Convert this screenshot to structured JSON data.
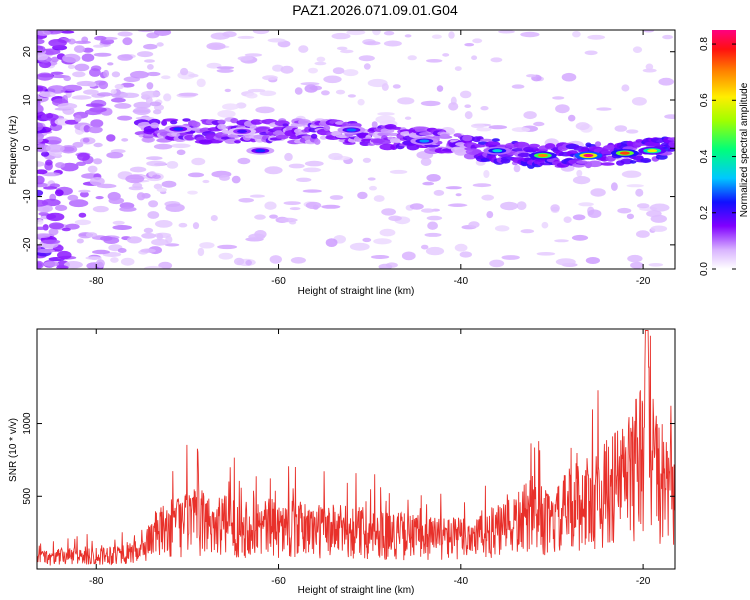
{
  "title": "PAZ1.2026.071.09.01.G04",
  "chart_data": [
    {
      "type": "heatmap",
      "title": "PAZ1.2026.071.09.01.G04",
      "xlabel": "Height of straight line (km)",
      "ylabel": "Frequency (Hz)",
      "xlim": [
        -86.5,
        -16.5
      ],
      "ylim": [
        -25,
        24.5
      ],
      "xticks": [
        -80,
        -60,
        -40,
        -20
      ],
      "yticks": [
        -20,
        -10,
        0,
        10,
        20
      ],
      "ridge": [
        {
          "x": -74,
          "y": 4.0
        },
        {
          "x": -68,
          "y": 3.5
        },
        {
          "x": -60,
          "y": 3.5
        },
        {
          "x": -54,
          "y": 3.5
        },
        {
          "x": -48,
          "y": 2.5
        },
        {
          "x": -42,
          "y": 1.5
        },
        {
          "x": -38,
          "y": 0.0
        },
        {
          "x": -32,
          "y": -1.5
        },
        {
          "x": -26,
          "y": -1.5
        },
        {
          "x": -20,
          "y": -0.5
        },
        {
          "x": -16.5,
          "y": 0.0
        }
      ],
      "hotspots": [
        {
          "x": -71,
          "y": 4.0,
          "amp": 0.25
        },
        {
          "x": -64,
          "y": 3.5,
          "amp": 0.2
        },
        {
          "x": -62,
          "y": -0.5,
          "amp": 0.25
        },
        {
          "x": -52,
          "y": 3.8,
          "amp": 0.28
        },
        {
          "x": -44,
          "y": 1.5,
          "amp": 0.3
        },
        {
          "x": -36,
          "y": -0.5,
          "amp": 0.35
        },
        {
          "x": -31,
          "y": -1.5,
          "amp": 0.7
        },
        {
          "x": -26,
          "y": -1.5,
          "amp": 0.9
        },
        {
          "x": -22,
          "y": -1.0,
          "amp": 0.75
        },
        {
          "x": -19,
          "y": -0.5,
          "amp": 0.6
        }
      ],
      "colorbar": {
        "label": "Normalized spectral amplitude",
        "range": [
          0.0,
          0.85
        ],
        "ticks": [
          0.0,
          0.2,
          0.4,
          0.6,
          0.8
        ],
        "colormap": "rainbow"
      }
    },
    {
      "type": "line",
      "xlabel": "Height of straight line (km)",
      "ylabel": "SNR (10 * v/v)",
      "xlim": [
        -86.5,
        -16.5
      ],
      "ylim": [
        0,
        1650
      ],
      "xticks": [
        -80,
        -60,
        -40,
        -20
      ],
      "yticks": [
        500,
        1000
      ],
      "color": "#e8302a",
      "envelope": [
        {
          "x": -86.5,
          "y": 130
        },
        {
          "x": -80,
          "y": 160
        },
        {
          "x": -75,
          "y": 200
        },
        {
          "x": -74,
          "y": 380
        },
        {
          "x": -70,
          "y": 560
        },
        {
          "x": -65,
          "y": 500
        },
        {
          "x": -60,
          "y": 480
        },
        {
          "x": -55,
          "y": 450
        },
        {
          "x": -50,
          "y": 430
        },
        {
          "x": -45,
          "y": 380
        },
        {
          "x": -40,
          "y": 360
        },
        {
          "x": -35,
          "y": 460
        },
        {
          "x": -32,
          "y": 650
        },
        {
          "x": -30,
          "y": 500
        },
        {
          "x": -28,
          "y": 720
        },
        {
          "x": -25,
          "y": 820
        },
        {
          "x": -22,
          "y": 1050
        },
        {
          "x": -20,
          "y": 1300
        },
        {
          "x": -19.5,
          "y": 1600
        },
        {
          "x": -18,
          "y": 900
        },
        {
          "x": -16.5,
          "y": 850
        }
      ]
    }
  ]
}
